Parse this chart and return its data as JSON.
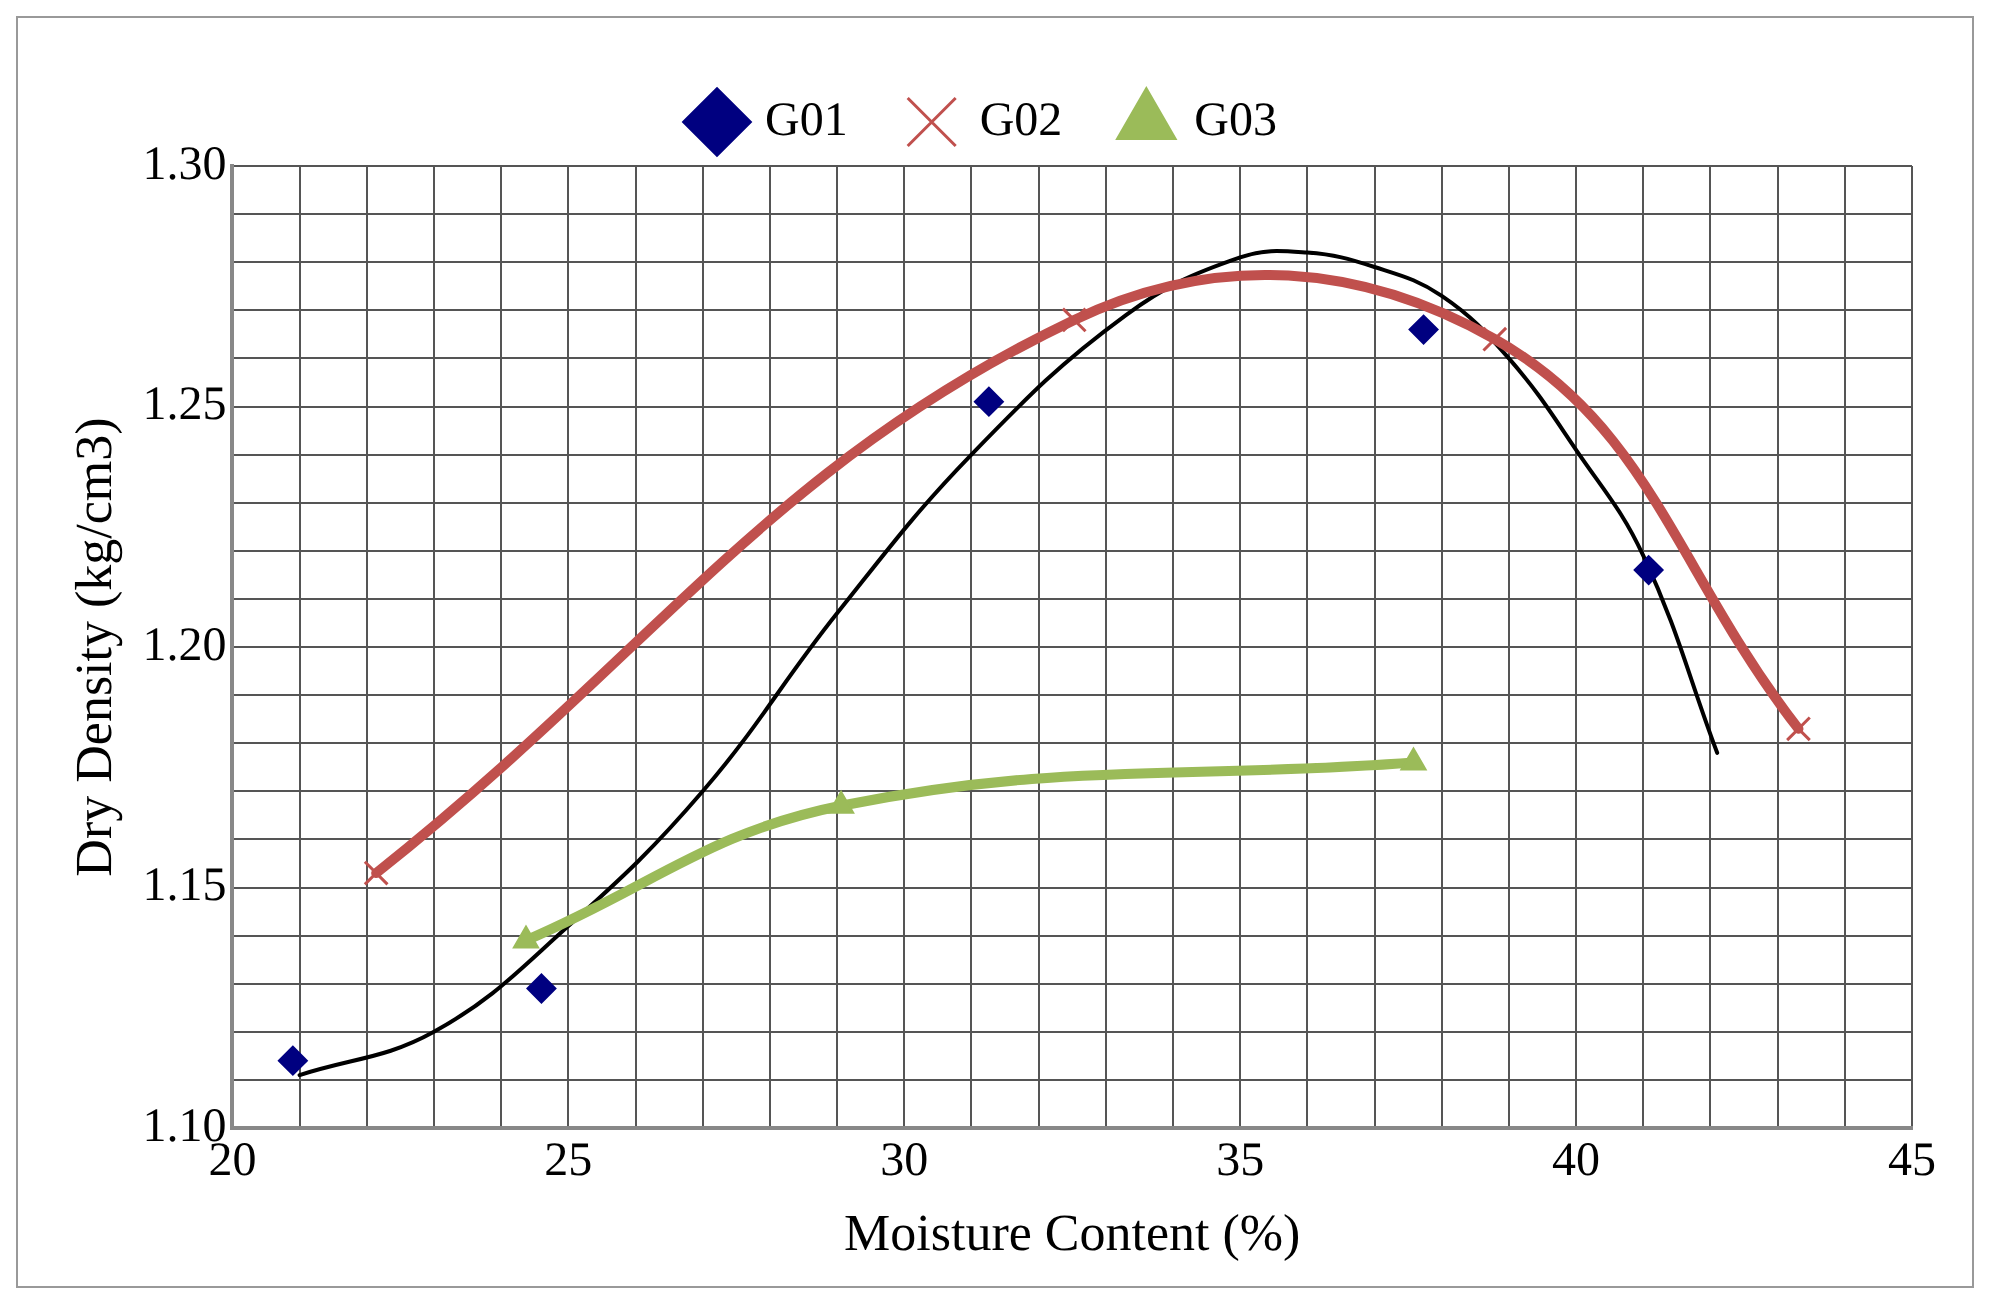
{
  "chart_data": {
    "type": "scatter",
    "xlabel": "Moisture Content (%)",
    "ylabel": "Dry Density (kg/cm3)",
    "xlim": [
      20,
      45
    ],
    "xticks": [
      20,
      {
        "value": 21,
        "label": null
      },
      {
        "value": 22,
        "label": null
      },
      {
        "value": 23,
        "label": null
      },
      {
        "value": 24,
        "label": null
      },
      25,
      {
        "value": 26,
        "label": null
      },
      {
        "value": 27,
        "label": null
      },
      {
        "value": 28,
        "label": null
      },
      {
        "value": 29,
        "label": null
      },
      30,
      {
        "value": 31,
        "label": null
      },
      {
        "value": 32,
        "label": null
      },
      {
        "value": 33,
        "label": null
      },
      {
        "value": 34,
        "label": null
      },
      35,
      {
        "value": 36,
        "label": null
      },
      {
        "value": 37,
        "label": null
      },
      {
        "value": 38,
        "label": null
      },
      {
        "value": 39,
        "label": null
      },
      40,
      {
        "value": 41,
        "label": null
      },
      {
        "value": 42,
        "label": null
      },
      {
        "value": 43,
        "label": null
      },
      {
        "value": 44,
        "label": null
      },
      45
    ],
    "ylim": [
      1.1,
      1.3
    ],
    "yticks": [
      {
        "value": 1.1,
        "label": "1.10"
      },
      {
        "value": 1.11,
        "label": null
      },
      {
        "value": 1.12,
        "label": null
      },
      {
        "value": 1.13,
        "label": null
      },
      {
        "value": 1.14,
        "label": null
      },
      {
        "value": 1.15,
        "label": "1.15"
      },
      {
        "value": 1.16,
        "label": null
      },
      {
        "value": 1.17,
        "label": null
      },
      {
        "value": 1.18,
        "label": null
      },
      {
        "value": 1.19,
        "label": null
      },
      {
        "value": 1.2,
        "label": "1.20"
      },
      {
        "value": 1.21,
        "label": null
      },
      {
        "value": 1.22,
        "label": null
      },
      {
        "value": 1.23,
        "label": null
      },
      {
        "value": 1.24,
        "label": null
      },
      {
        "value": 1.25,
        "label": "1.25"
      },
      {
        "value": 1.26,
        "label": null
      },
      {
        "value": 1.27,
        "label": null
      },
      {
        "value": 1.28,
        "label": null
      },
      {
        "value": 1.29,
        "label": null
      },
      {
        "value": 1.3,
        "label": "1.30"
      }
    ],
    "grid": true,
    "legend": "top",
    "series": [
      {
        "name": "G01",
        "marker": "diamond",
        "color": "#000080",
        "x": [
          20.9,
          24.6,
          31.26,
          37.73,
          41.08
        ],
        "values": [
          1.114,
          1.129,
          1.251,
          1.266,
          1.216
        ]
      },
      {
        "name": "G02",
        "type": "line",
        "marker": "cross",
        "color": "#c0504d",
        "x": [
          22.14,
          32.53,
          38.79,
          43.31
        ],
        "values": [
          1.153,
          1.268,
          1.264,
          1.183
        ]
      },
      {
        "name": "G03",
        "type": "line",
        "marker": "triangle",
        "color": "#9bbb59",
        "x": [
          24.37,
          29.06,
          37.58
        ],
        "values": [
          1.139,
          1.167,
          1.176
        ]
      },
      {
        "type": "line",
        "marker": "none",
        "color": "#000000",
        "x": [
          21,
          23,
          25,
          27,
          29,
          31,
          33.3,
          35,
          36,
          37,
          38,
          39,
          40,
          41,
          42.1
        ],
        "values": [
          1.111,
          1.12,
          1.142,
          1.17,
          1.207,
          1.24,
          1.269,
          1.281,
          1.282,
          1.279,
          1.273,
          1.26,
          1.241,
          1.219,
          1.178
        ]
      }
    ]
  }
}
